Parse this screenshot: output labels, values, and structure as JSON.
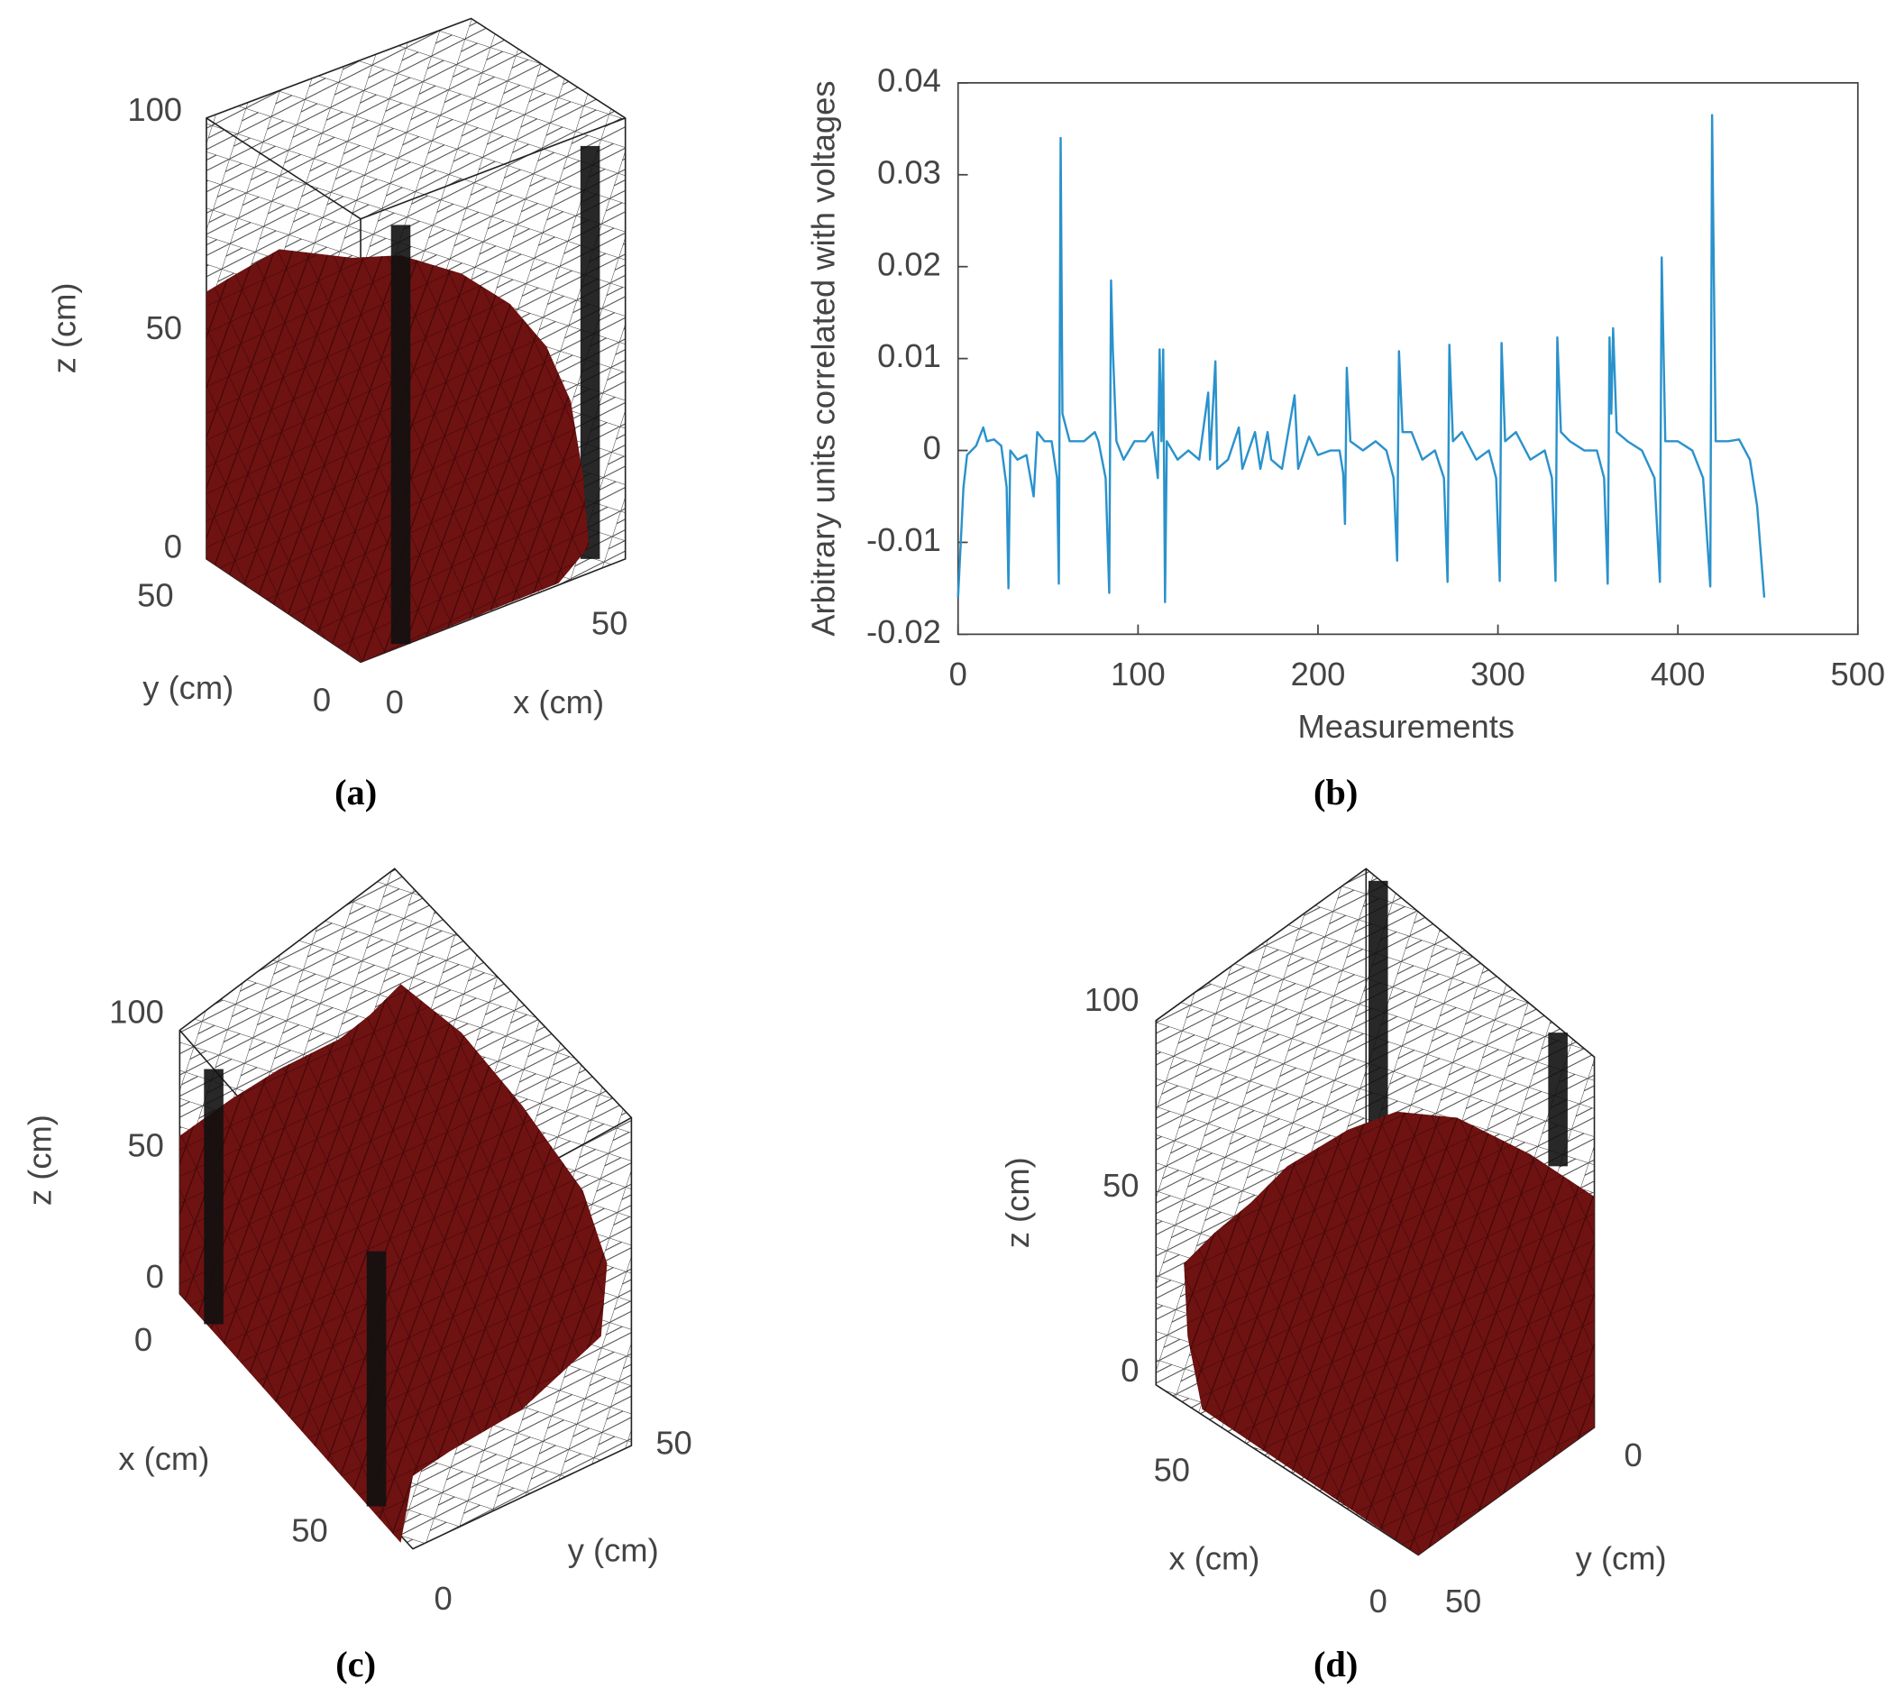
{
  "panels": [
    {
      "caption": "(a)",
      "texts": [
        "100",
        "50",
        "0",
        "z (cm)",
        "50",
        "y (cm)",
        "0",
        "0",
        "50",
        "x (cm)"
      ]
    },
    {
      "caption": "(b)"
    },
    {
      "caption": "(c)",
      "texts": [
        "100",
        "50",
        "0",
        "z (cm)",
        "0",
        "x (cm)",
        "50",
        "0",
        "y (cm)",
        "50"
      ]
    },
    {
      "caption": "(d)",
      "texts": [
        "100",
        "50",
        "0",
        "z (cm)",
        "50",
        "x (cm)",
        "0",
        "50",
        "y (cm)",
        "0"
      ]
    }
  ],
  "chart_data": {
    "type": "line",
    "xlabel": "Measurements",
    "ylabel": "Arbitrary units correlated with voltages",
    "xlim": [
      0,
      500
    ],
    "xticks": [
      0,
      100,
      200,
      300,
      400,
      500
    ],
    "ylim": [
      -0.02,
      0.04
    ],
    "yticks": [
      -0.02,
      -0.01,
      0,
      0.01,
      0.02,
      0.03,
      0.04
    ],
    "grid": false,
    "x": [
      0,
      3,
      5,
      10,
      14,
      16,
      20,
      24,
      27,
      28,
      29,
      33,
      38,
      42,
      44,
      48,
      52,
      55,
      56,
      57,
      58,
      62,
      70,
      76,
      78,
      82,
      84,
      85,
      86,
      88,
      92,
      98,
      104,
      108,
      111,
      112,
      113,
      114,
      115,
      116,
      122,
      128,
      134,
      139,
      140,
      143,
      144,
      150,
      156,
      158,
      165,
      168,
      172,
      174,
      180,
      187,
      189,
      195,
      200,
      207,
      212,
      214,
      215,
      216,
      218,
      225,
      232,
      238,
      242,
      244,
      245,
      247,
      252,
      258,
      265,
      270,
      272,
      273,
      275,
      280,
      288,
      295,
      299,
      301,
      302,
      304,
      310,
      318,
      326,
      330,
      332,
      333,
      335,
      340,
      348,
      355,
      359,
      361,
      362,
      363,
      364,
      366,
      372,
      380,
      387,
      390,
      391,
      393,
      400,
      408,
      414,
      418,
      419,
      421,
      428,
      434,
      440,
      444,
      448
    ],
    "series": [
      {
        "name": "voltages",
        "color": "#2a92cc",
        "values": [
          -0.016,
          -0.004,
          -0.0005,
          0.0005,
          0.0025,
          0.001,
          0.0012,
          0.0005,
          -0.004,
          -0.015,
          0,
          -0.001,
          -0.0005,
          -0.005,
          0.002,
          0.001,
          0.001,
          -0.003,
          -0.0145,
          0.034,
          0.004,
          0.001,
          0.001,
          0.002,
          0.001,
          -0.003,
          -0.0155,
          0.0185,
          0.011,
          0.001,
          -0.001,
          0.001,
          0.001,
          0.002,
          -0.003,
          0.011,
          0.001,
          0.011,
          -0.0165,
          0.001,
          -0.001,
          0,
          -0.001,
          0.0063,
          -0.001,
          0.0097,
          -0.002,
          -0.001,
          0.0025,
          -0.002,
          0.002,
          -0.002,
          0.002,
          -0.001,
          -0.002,
          0.006,
          -0.002,
          0.0015,
          -0.0005,
          0,
          0,
          -0.0025,
          -0.008,
          0.009,
          0.001,
          0,
          0.001,
          0,
          -0.003,
          -0.012,
          0.0108,
          0.002,
          0.002,
          -0.001,
          0,
          -0.003,
          -0.0143,
          0.0115,
          0.001,
          0.002,
          -0.001,
          0,
          -0.003,
          -0.0142,
          0.0117,
          0.001,
          0.002,
          -0.001,
          0,
          -0.003,
          -0.0142,
          0.0123,
          0.002,
          0.001,
          0,
          0,
          -0.003,
          -0.0145,
          0.0123,
          0.004,
          0.0133,
          0.002,
          0.001,
          0,
          -0.003,
          -0.0143,
          0.021,
          0.001,
          0.001,
          0,
          -0.003,
          -0.0148,
          0.0365,
          0.001,
          0.001,
          0.0012,
          -0.001,
          -0.006,
          -0.016
        ]
      }
    ]
  }
}
